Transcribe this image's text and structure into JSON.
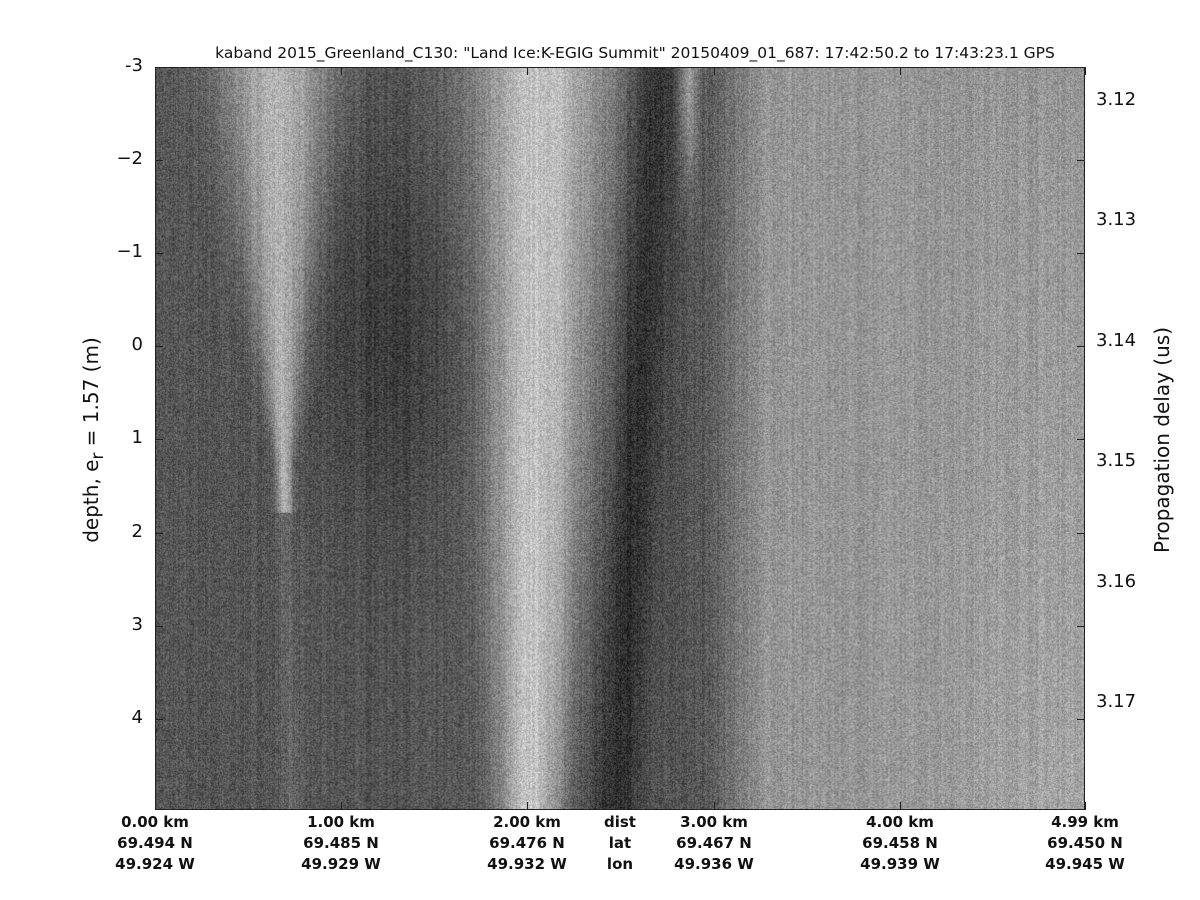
{
  "chart_data": {
    "type": "heatmap",
    "title": "kaband 2015_Greenland_C130: \"Land Ice:K-EGIG Summit\"  20150409_01_687: 17:42:50.2 to 17:43:23.1 GPS",
    "ylabel": "depth, e",
    "ylabel_sub": "r",
    "ylabel_rest": " = 1.57 (m)",
    "ylim": [
      -3,
      4.98
    ],
    "yticks": [
      "-3",
      "−2",
      "−1",
      "0",
      "1",
      "2",
      "3",
      "4"
    ],
    "y2label": "Propagation delay (us)",
    "y2ticks": [
      "3.12",
      "3.13",
      "3.14",
      "3.15",
      "3.16",
      "3.17"
    ],
    "colormap": "gray",
    "x_rows": {
      "labels": [
        "dist",
        "lat",
        "lon"
      ],
      "dist": [
        "0.00 km",
        "1.00 km",
        "2.00 km",
        "3.00 km",
        "4.00 km",
        "4.99 km"
      ],
      "lat": [
        "69.494 N",
        "69.485 N",
        "69.476 N",
        "69.467 N",
        "69.458 N",
        "69.450 N"
      ],
      "lon": [
        "49.924 W",
        "49.929 W",
        "49.932 W",
        "49.936 W",
        "49.939 W",
        "49.945 W"
      ]
    }
  }
}
